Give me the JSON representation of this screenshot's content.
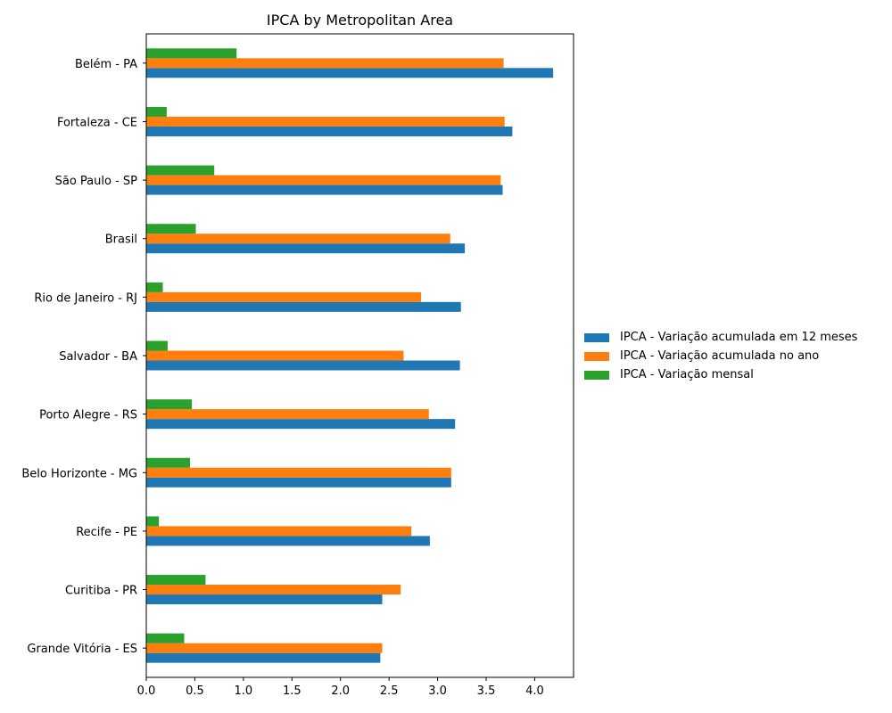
{
  "chart_data": {
    "type": "bar",
    "orientation": "horizontal",
    "title": "IPCA by Metropolitan Area",
    "xlabel": "",
    "ylabel": "",
    "xlim": [
      0,
      4.4
    ],
    "xticks": [
      "0.0",
      "0.5",
      "1.0",
      "1.5",
      "2.0",
      "2.5",
      "3.0",
      "3.5",
      "4.0"
    ],
    "grid": false,
    "legend_position": "right",
    "categories": [
      "Belém - PA",
      "Fortaleza - CE",
      "São Paulo - SP",
      "Brasil",
      "Rio de Janeiro - RJ",
      "Salvador - BA",
      "Porto Alegre - RS",
      "Belo Horizonte - MG",
      "Recife - PE",
      "Curitiba - PR",
      "Grande Vitória - ES"
    ],
    "series": [
      {
        "name": "IPCA - Variação acumulada em 12 meses",
        "color": "#1f77b4",
        "values": [
          4.19,
          3.77,
          3.67,
          3.28,
          3.24,
          3.23,
          3.18,
          3.14,
          2.92,
          2.43,
          2.41
        ]
      },
      {
        "name": "IPCA - Variação acumulada no ano",
        "color": "#ff7f0e",
        "values": [
          3.68,
          3.69,
          3.65,
          3.13,
          2.83,
          2.65,
          2.91,
          3.14,
          2.73,
          2.62,
          2.43
        ]
      },
      {
        "name": "IPCA - Variação mensal",
        "color": "#2ca02c",
        "values": [
          0.93,
          0.21,
          0.7,
          0.51,
          0.17,
          0.22,
          0.47,
          0.45,
          0.13,
          0.61,
          0.39
        ]
      }
    ]
  }
}
